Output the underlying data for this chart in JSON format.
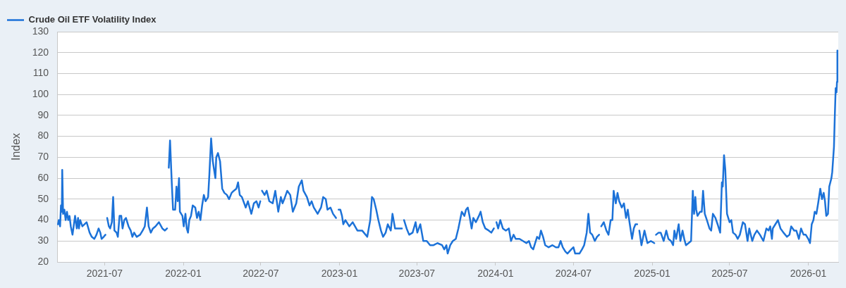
{
  "chart_data": {
    "type": "line",
    "ylabel": "Index",
    "legend": "top left",
    "grid": "y",
    "xlim": [
      "2021-03-12",
      "2026-03-12"
    ],
    "xticks": [
      "2021-07",
      "2022-01",
      "2022-07",
      "2023-01",
      "2023-07",
      "2024-01",
      "2024-07",
      "2025-01",
      "2025-07",
      "2026-01"
    ],
    "ylim": [
      20,
      130
    ],
    "yticks": [
      20,
      30,
      40,
      50,
      60,
      70,
      80,
      90,
      100,
      110,
      120,
      130
    ],
    "x": [
      "2021-03-14",
      "2021-03-16",
      "2021-03-19",
      "2021-03-21",
      "2021-03-23",
      "2021-03-24",
      "2021-03-26",
      "2021-03-29",
      "2021-04-01",
      "2021-04-04",
      "2021-04-07",
      "2021-04-10",
      "2021-04-13",
      "2021-04-17",
      "2021-04-23",
      "2021-04-27",
      "2021-04-30",
      "2021-05-02",
      "2021-05-05",
      "2021-05-10",
      "2021-05-20",
      "2021-05-27",
      "2021-06-01",
      "2021-06-07",
      "2021-06-12",
      "2021-06-17",
      "2021-06-21",
      "2021-06-24",
      "2021-06-29",
      "2021-07-03",
      "2021-07-05",
      "2021-07-07",
      "2021-07-11",
      "2021-07-14",
      "2021-07-18",
      "2021-07-21",
      "2021-07-24",
      "2021-07-29",
      "2021-08-01",
      "2021-08-05",
      "2021-08-09",
      "2021-08-12",
      "2021-08-16",
      "2021-08-20",
      "2021-08-26",
      "2021-08-31",
      "2021-09-04",
      "2021-09-08",
      "2021-09-14",
      "2021-09-22",
      "2021-09-28",
      "2021-10-03",
      "2021-10-08",
      "2021-10-12",
      "2021-10-17",
      "2021-10-22",
      "2021-10-28",
      "2021-11-05",
      "2021-11-13",
      "2021-11-19",
      "2021-11-24",
      "2021-11-26",
      "2021-11-28",
      "2021-12-01",
      "2021-12-05",
      "2021-12-08",
      "2021-12-13",
      "2021-12-16",
      "2021-12-19",
      "2021-12-22",
      "2021-12-24",
      "2021-12-30",
      "2022-01-02",
      "2022-01-06",
      "2022-01-09",
      "2022-01-12",
      "2022-01-15",
      "2022-01-19",
      "2022-01-23",
      "2022-01-29",
      "2022-02-02",
      "2022-02-06",
      "2022-02-10",
      "2022-02-14",
      "2022-02-18",
      "2022-02-22",
      "2022-02-28",
      "2022-03-03",
      "2022-03-07",
      "2022-03-11",
      "2022-03-17",
      "2022-03-19",
      "2022-03-23",
      "2022-03-28",
      "2022-04-02",
      "2022-04-07",
      "2022-04-13",
      "2022-04-18",
      "2022-04-24",
      "2022-04-29",
      "2022-05-05",
      "2022-05-09",
      "2022-05-13",
      "2022-05-18",
      "2022-05-27",
      "2022-06-01",
      "2022-06-09",
      "2022-06-15",
      "2022-06-21",
      "2022-06-26",
      "2022-06-30",
      "2022-07-02",
      "2022-07-04",
      "2022-07-10",
      "2022-07-15",
      "2022-07-21",
      "2022-07-29",
      "2022-08-04",
      "2022-08-11",
      "2022-08-17",
      "2022-08-21",
      "2022-08-25",
      "2022-09-01",
      "2022-09-08",
      "2022-09-14",
      "2022-09-22",
      "2022-09-28",
      "2022-10-05",
      "2022-10-09",
      "2022-10-17",
      "2022-10-23",
      "2022-10-28",
      "2022-11-02",
      "2022-11-11",
      "2022-11-19",
      "2022-11-24",
      "2022-11-30",
      "2022-12-04",
      "2022-12-11",
      "2022-12-17",
      "2022-12-24",
      "2022-12-26",
      "2022-12-30",
      "2023-01-03",
      "2023-01-07",
      "2023-01-10",
      "2023-01-15",
      "2023-01-24",
      "2023-02-01",
      "2023-02-12",
      "2023-02-23",
      "2023-03-07",
      "2023-03-14",
      "2023-03-18",
      "2023-03-22",
      "2023-03-28",
      "2023-04-02",
      "2023-04-08",
      "2023-04-13",
      "2023-04-19",
      "2023-04-24",
      "2023-05-01",
      "2023-05-05",
      "2023-05-11",
      "2023-05-22",
      "2023-05-27",
      "2023-05-29",
      "2023-06-01",
      "2023-06-07",
      "2023-06-13",
      "2023-06-21",
      "2023-06-28",
      "2023-07-02",
      "2023-07-09",
      "2023-07-16",
      "2023-07-24",
      "2023-08-01",
      "2023-08-09",
      "2023-08-18",
      "2023-08-29",
      "2023-09-03",
      "2023-09-08",
      "2023-09-11",
      "2023-09-17",
      "2023-09-23",
      "2023-09-30",
      "2023-10-06",
      "2023-10-10",
      "2023-10-14",
      "2023-10-20",
      "2023-10-24",
      "2023-10-28",
      "2023-11-01",
      "2023-11-06",
      "2023-11-10",
      "2023-11-16",
      "2023-11-23",
      "2023-11-27",
      "2023-12-02",
      "2023-12-08",
      "2023-12-16",
      "2023-12-22",
      "2023-12-28",
      "2023-12-30",
      "2024-01-03",
      "2024-01-07",
      "2024-01-12",
      "2024-01-18",
      "2024-01-25",
      "2024-02-01",
      "2024-02-06",
      "2024-02-12",
      "2024-02-17",
      "2024-02-26",
      "2024-03-05",
      "2024-03-13",
      "2024-03-19",
      "2024-03-24",
      "2024-03-29",
      "2024-04-01",
      "2024-04-07",
      "2024-04-12",
      "2024-04-16",
      "2024-04-21",
      "2024-04-26",
      "2024-05-04",
      "2024-05-13",
      "2024-05-21",
      "2024-05-27",
      "2024-06-01",
      "2024-06-06",
      "2024-06-12",
      "2024-06-17",
      "2024-06-26",
      "2024-07-01",
      "2024-07-05",
      "2024-07-15",
      "2024-07-21",
      "2024-07-26",
      "2024-08-01",
      "2024-08-05",
      "2024-08-09",
      "2024-08-14",
      "2024-08-20",
      "2024-08-25",
      "2024-08-30",
      "2024-09-01",
      "2024-09-04",
      "2024-09-10",
      "2024-09-16",
      "2024-09-21",
      "2024-09-26",
      "2024-09-30",
      "2024-10-03",
      "2024-10-08",
      "2024-10-12",
      "2024-10-16",
      "2024-10-22",
      "2024-10-27",
      "2024-11-01",
      "2024-11-05",
      "2024-11-09",
      "2024-11-15",
      "2024-11-19",
      "2024-11-23",
      "2024-11-27",
      "2024-11-29",
      "2024-12-02",
      "2024-12-07",
      "2024-12-14",
      "2024-12-21",
      "2024-12-29",
      "2025-01-06",
      "2025-01-08",
      "2025-01-10",
      "2025-01-16",
      "2025-01-21",
      "2025-01-28",
      "2025-02-03",
      "2025-02-08",
      "2025-02-14",
      "2025-02-19",
      "2025-02-22",
      "2025-02-26",
      "2025-03-04",
      "2025-03-08",
      "2025-03-13",
      "2025-03-17",
      "2025-03-21",
      "2025-03-27",
      "2025-04-02",
      "2025-04-06",
      "2025-04-09",
      "2025-04-12",
      "2025-04-14",
      "2025-04-17",
      "2025-04-23",
      "2025-04-27",
      "2025-04-30",
      "2025-05-04",
      "2025-05-09",
      "2025-05-15",
      "2025-05-19",
      "2025-05-23",
      "2025-05-29",
      "2025-06-03",
      "2025-06-09",
      "2025-06-13",
      "2025-06-15",
      "2025-06-18",
      "2025-06-21",
      "2025-06-25",
      "2025-07-01",
      "2025-07-05",
      "2025-07-09",
      "2025-07-15",
      "2025-07-20",
      "2025-07-25",
      "2025-08-01",
      "2025-08-06",
      "2025-08-12",
      "2025-08-16",
      "2025-08-23",
      "2025-08-28",
      "2025-09-03",
      "2025-09-10",
      "2025-09-18",
      "2025-09-25",
      "2025-09-30",
      "2025-10-04",
      "2025-10-08",
      "2025-10-10",
      "2025-10-16",
      "2025-10-22",
      "2025-10-28",
      "2025-11-04",
      "2025-11-12",
      "2025-11-18",
      "2025-11-22",
      "2025-11-29",
      "2025-12-04",
      "2025-12-10",
      "2025-12-15",
      "2025-12-21",
      "2025-12-26",
      "2026-01-01",
      "2026-01-05",
      "2026-01-09",
      "2026-01-13",
      "2026-01-16",
      "2026-01-20",
      "2026-01-24",
      "2026-01-29",
      "2026-02-02",
      "2026-02-06",
      "2026-02-09",
      "2026-02-12",
      "2026-02-16",
      "2026-02-19",
      "2026-02-24",
      "2026-02-26",
      "2026-03-02",
      "2026-03-04",
      "2026-03-06",
      "2026-03-08",
      "2026-03-09",
      "2026-03-10"
    ],
    "series": [
      {
        "name": "Crude Oil ETF Volatility Index",
        "color": "#1c72d8",
        "values": [
          38,
          40,
          37,
          47,
          44,
          64,
          43,
          45,
          40,
          44,
          40,
          42,
          37,
          33,
          42,
          36,
          41,
          36,
          40,
          37,
          39,
          34,
          32,
          31,
          33,
          36,
          34,
          31,
          32,
          33,
          null,
          41,
          37,
          36,
          39,
          51,
          35,
          34,
          32,
          42,
          42,
          36,
          40,
          41,
          37,
          35,
          32,
          34,
          32,
          33,
          35,
          37,
          46,
          37,
          34,
          36,
          37,
          39,
          36,
          35,
          36,
          null,
          65,
          78,
          58,
          45,
          45,
          56,
          49,
          60,
          44,
          42,
          37,
          43,
          36,
          34,
          40,
          42,
          47,
          46,
          41,
          44,
          40,
          47,
          52,
          49,
          51,
          62,
          79,
          68,
          60,
          70,
          72,
          68,
          55,
          53,
          52,
          50,
          53,
          54,
          55,
          58,
          52,
          51,
          46,
          49,
          43,
          48,
          49,
          46,
          49,
          null,
          54,
          52,
          54,
          49,
          48,
          54,
          44,
          51,
          48,
          50,
          54,
          52,
          44,
          48,
          56,
          59,
          54,
          51,
          47,
          49,
          46,
          43,
          46,
          51,
          50,
          45,
          46,
          43,
          41,
          null,
          45,
          45,
          42,
          38,
          40,
          37,
          39,
          35,
          35,
          32,
          40,
          51,
          50,
          45,
          40,
          35,
          32,
          34,
          38,
          35,
          43,
          36,
          36,
          36,
          null,
          40,
          36,
          33,
          34,
          39,
          34,
          38,
          30,
          30,
          28,
          28,
          29,
          28,
          26,
          28,
          24,
          28,
          30,
          31,
          36,
          40,
          44,
          42,
          45,
          46,
          42,
          36,
          41,
          39,
          42,
          44,
          39,
          36,
          35,
          34,
          36,
          null,
          39,
          36,
          40,
          36,
          35,
          36,
          30,
          33,
          31,
          31,
          30,
          29,
          30,
          27,
          26,
          28,
          32,
          31,
          35,
          32,
          28,
          27,
          28,
          27,
          27,
          30,
          27,
          25,
          24,
          26,
          27,
          24,
          24,
          26,
          28,
          34,
          43,
          34,
          33,
          30,
          32,
          33,
          null,
          37,
          39,
          35,
          33,
          40,
          40,
          54,
          48,
          53,
          49,
          46,
          48,
          41,
          45,
          39,
          31,
          36,
          38,
          38,
          null,
          35,
          28,
          35,
          29,
          30,
          29,
          null,
          33,
          34,
          34,
          30,
          35,
          31,
          30,
          28,
          35,
          31,
          38,
          30,
          35,
          31,
          28,
          29,
          30,
          54,
          43,
          51,
          45,
          42,
          44,
          44,
          54,
          43,
          40,
          36,
          35,
          43,
          41,
          38,
          34,
          58,
          56,
          71,
          64,
          43,
          39,
          40,
          34,
          33,
          31,
          33,
          39,
          38,
          30,
          36,
          30,
          33,
          35,
          33,
          30,
          36,
          35,
          37,
          31,
          36,
          38,
          40,
          36,
          34,
          32,
          33,
          37,
          35,
          35,
          31,
          36,
          33,
          33,
          31,
          29,
          38,
          40,
          44,
          43,
          48,
          55,
          50,
          53,
          49,
          42,
          43,
          56,
          60,
          63,
          75,
          90,
          103,
          101,
          106,
          121
        ]
      }
    ]
  }
}
